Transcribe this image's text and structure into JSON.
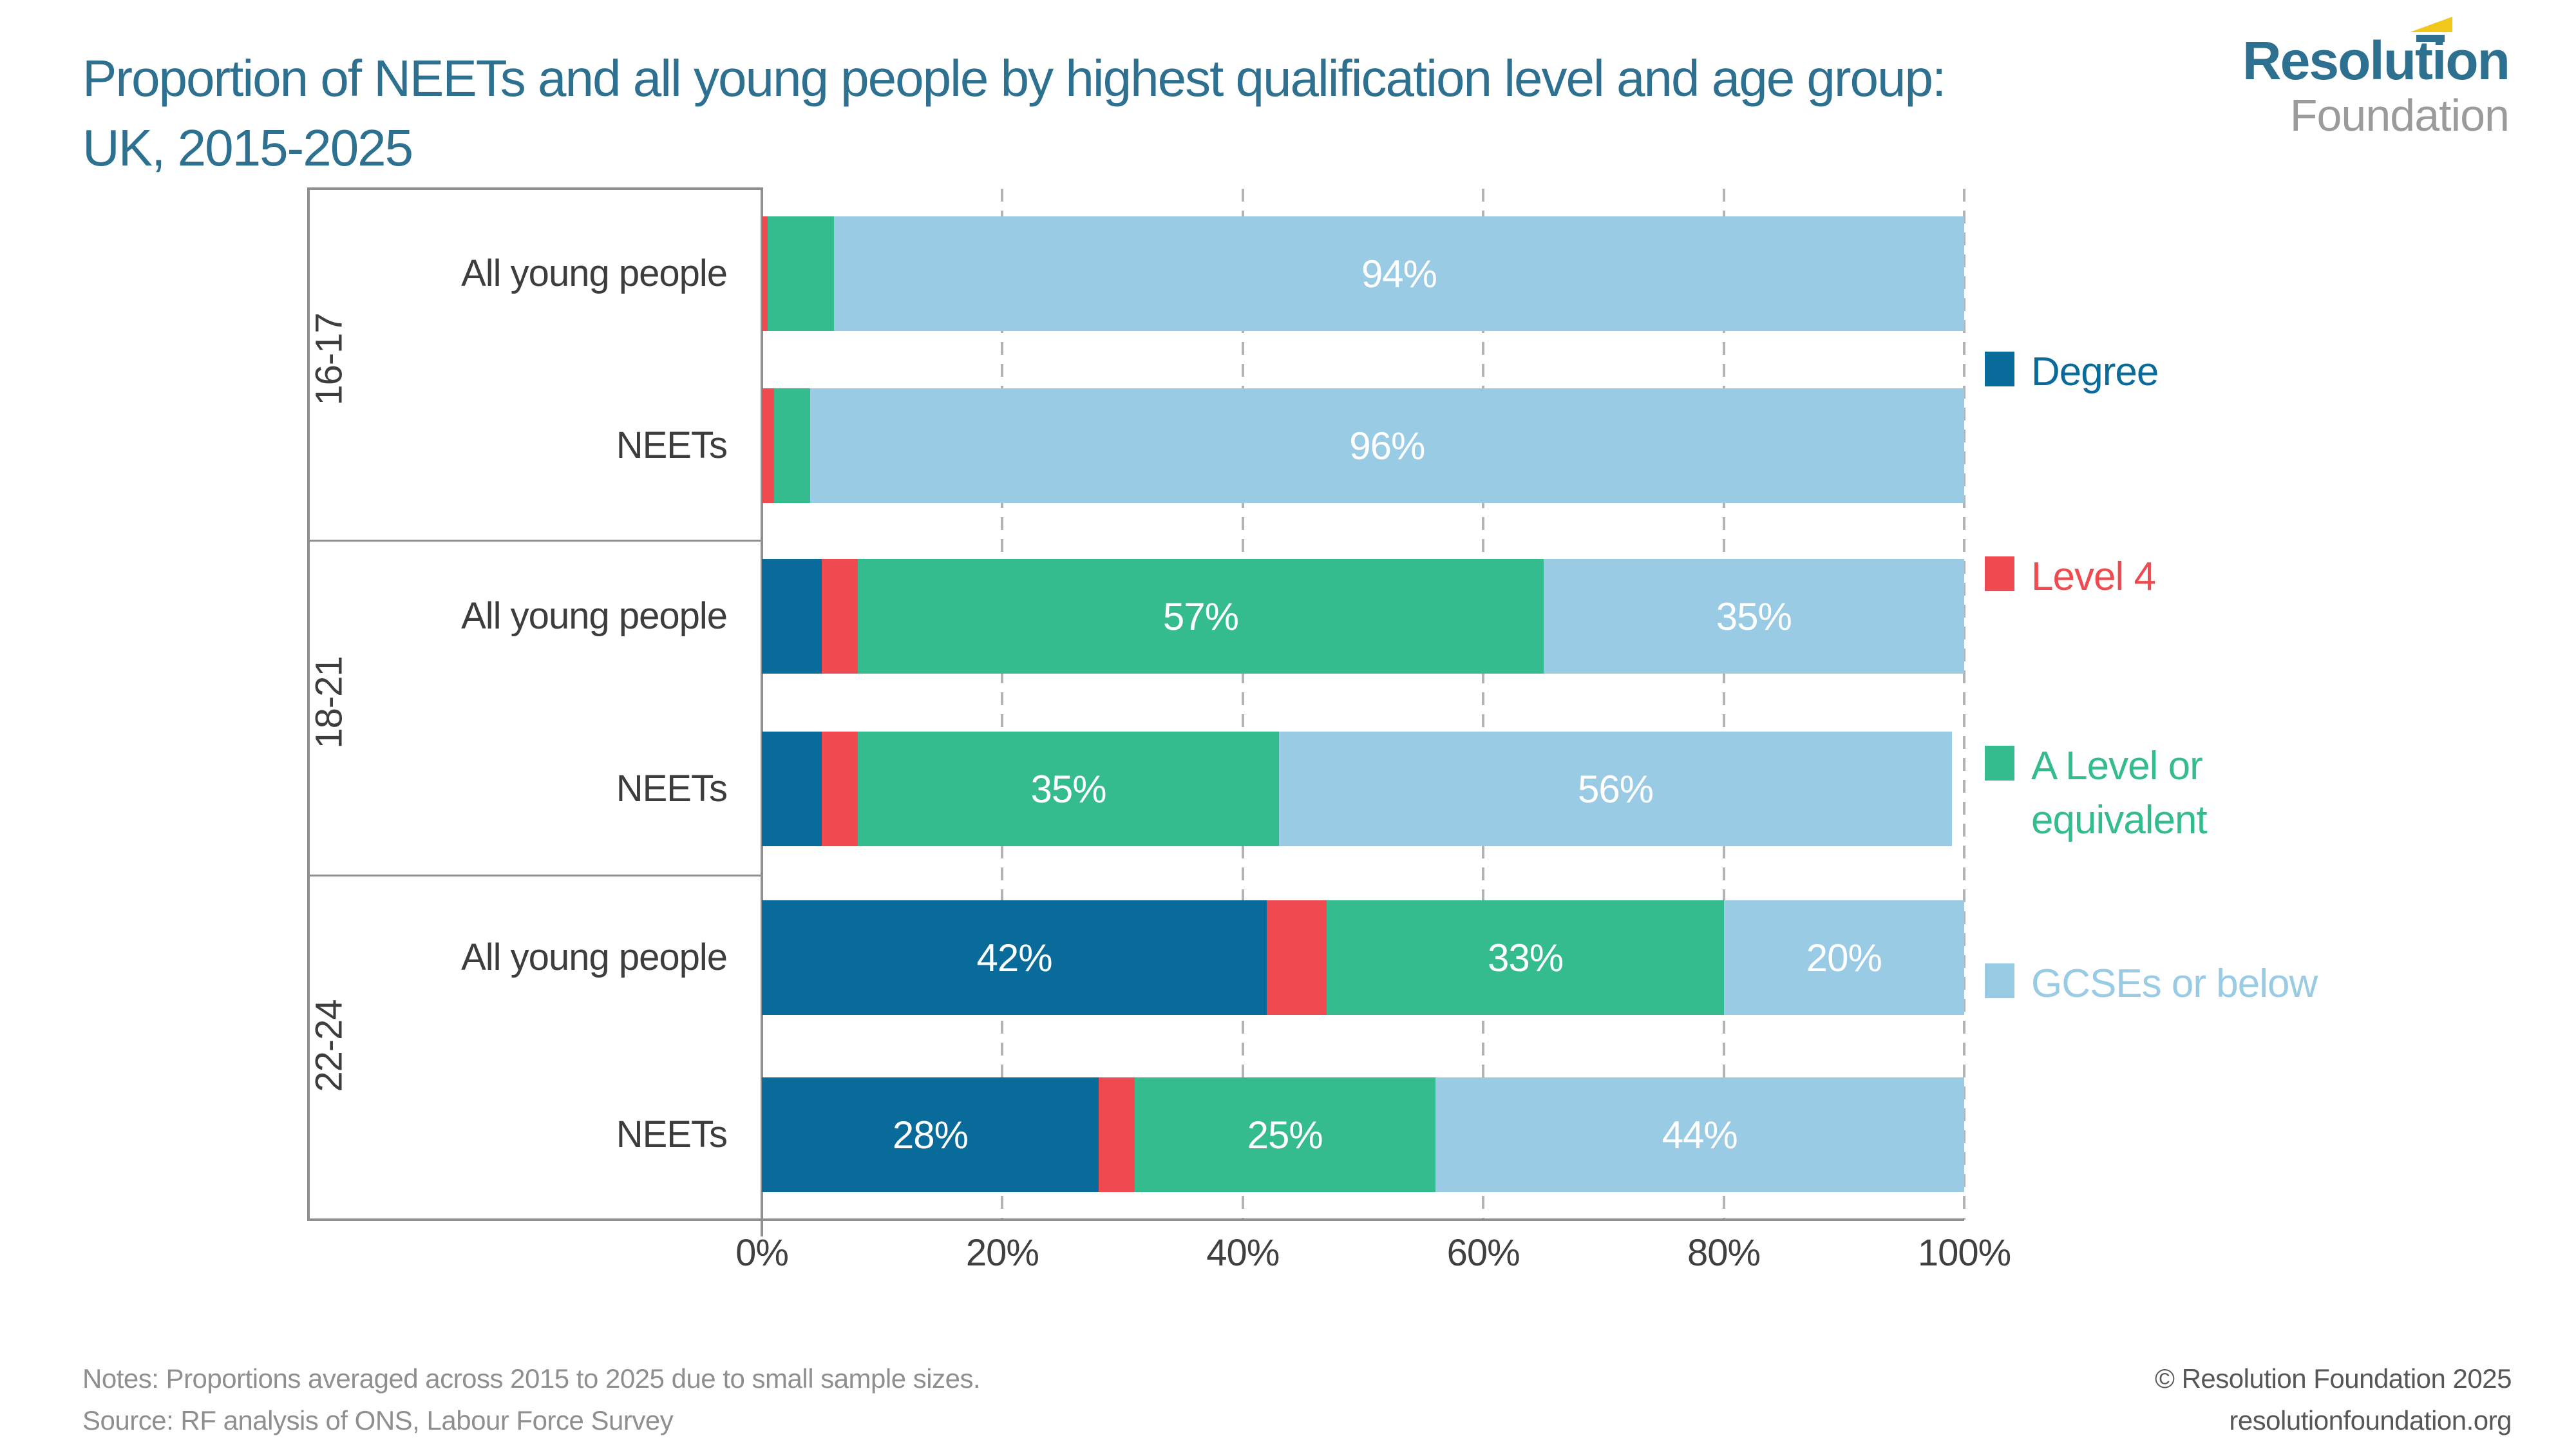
{
  "title": {
    "line1": "Proportion of NEETs and all young people by highest qualification level and age group:",
    "line2": "UK, 2015-2025"
  },
  "logo": {
    "line1": "Resolution",
    "line2": "Foundation",
    "accent_color": "#f2c71b",
    "brand_color": "#2e7090"
  },
  "legend": [
    {
      "label": "Degree",
      "color": "#086b9a"
    },
    {
      "label": "Level 4",
      "color": "#ef4a50"
    },
    {
      "label": "A Level or\nequivalent",
      "color": "#34bc8e"
    },
    {
      "label": "GCSEs or below",
      "color": "#9acbe5"
    }
  ],
  "chart_data": {
    "type": "bar",
    "variant": "horizontal-stacked",
    "unit": "%",
    "xlim": [
      0,
      100
    ],
    "x_ticks": [
      "0%",
      "20%",
      "40%",
      "60%",
      "80%",
      "100%"
    ],
    "grid": "dashed-vertical",
    "legend_position": "right",
    "series_names": [
      "Degree",
      "Level 4",
      "A Level or equivalent",
      "GCSEs or below"
    ],
    "series_colors": [
      "#086b9a",
      "#ef4a50",
      "#34bc8e",
      "#9acbe5"
    ],
    "groups": [
      {
        "label": "16-17",
        "bars": [
          {
            "label": "All young people",
            "values": [
              0,
              0.5,
              5.5,
              94
            ],
            "data_labels": [
              "",
              "",
              "",
              "94%"
            ]
          },
          {
            "label": "NEETs",
            "values": [
              0,
              1,
              3,
              96
            ],
            "data_labels": [
              "",
              "",
              "",
              "96%"
            ]
          }
        ]
      },
      {
        "label": "18-21",
        "bars": [
          {
            "label": "All young people",
            "values": [
              5,
              3,
              57,
              35
            ],
            "data_labels": [
              "",
              "",
              "57%",
              "35%"
            ]
          },
          {
            "label": "NEETs",
            "values": [
              5,
              3,
              35,
              56
            ],
            "data_labels": [
              "",
              "",
              "35%",
              "56%"
            ]
          }
        ]
      },
      {
        "label": "22-24",
        "bars": [
          {
            "label": "All young people",
            "values": [
              42,
              5,
              33,
              20
            ],
            "data_labels": [
              "42%",
              "",
              "33%",
              "20%"
            ]
          },
          {
            "label": "NEETs",
            "values": [
              28,
              3,
              25,
              44
            ],
            "data_labels": [
              "28%",
              "",
              "25%",
              "44%"
            ]
          }
        ]
      }
    ]
  },
  "footer": {
    "notes": "Notes: Proportions averaged across 2015 to 2025 due to small sample sizes.",
    "source": "Source: RF analysis of ONS, Labour Force Survey",
    "copyright": "© Resolution Foundation 2025",
    "website": "resolutionfoundation.org"
  }
}
